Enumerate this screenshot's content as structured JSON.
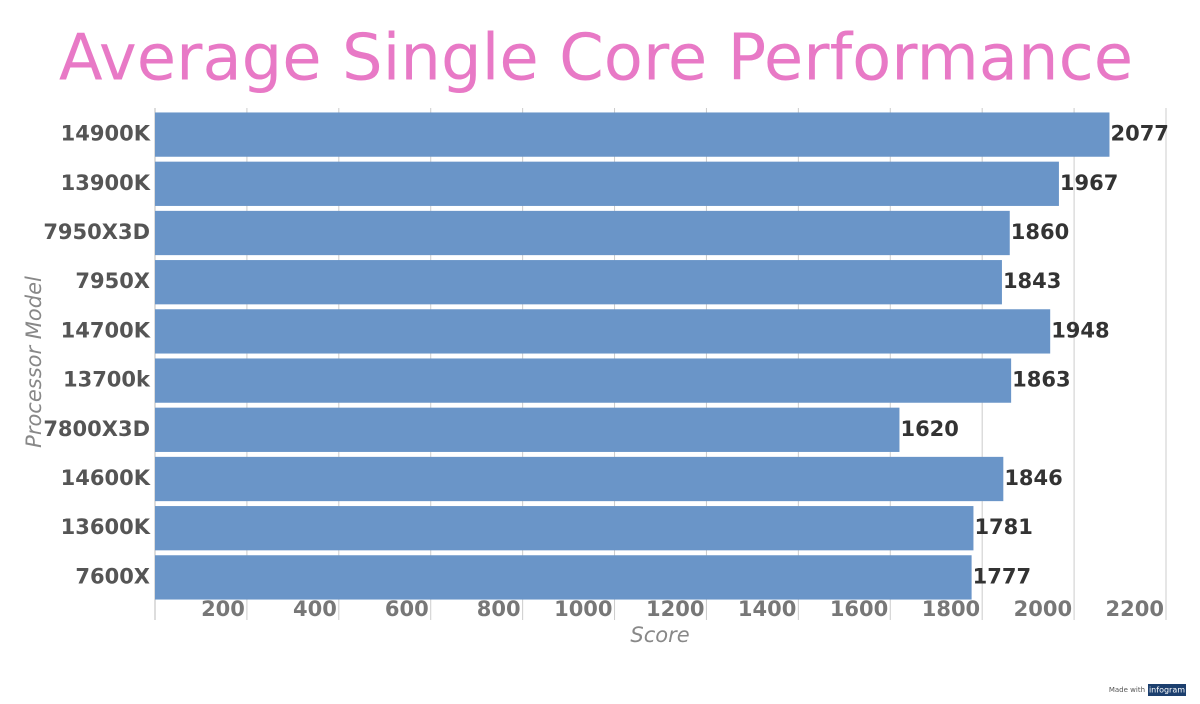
{
  "chart_data": {
    "type": "bar",
    "orientation": "horizontal",
    "title": "Average Single Core Performance",
    "x_label": "Score",
    "y_label": "Processor Model",
    "categories": [
      "14900K",
      "13900K",
      "7950X3D",
      "7950X",
      "14700K",
      "13700k",
      "7800X3D",
      "14600K",
      "13600K",
      "7600X"
    ],
    "values": [
      2077,
      1967,
      1860,
      1843,
      1948,
      1863,
      1620,
      1846,
      1781,
      1777
    ],
    "color": "#6a95c8",
    "xlim": [
      0,
      2200
    ],
    "xticks": [
      200,
      400,
      600,
      800,
      1000,
      1200,
      1400,
      1600,
      1800,
      2000,
      2200
    ],
    "grid": true
  },
  "footer": {
    "made_with": "Made with",
    "brand": "infogram"
  }
}
